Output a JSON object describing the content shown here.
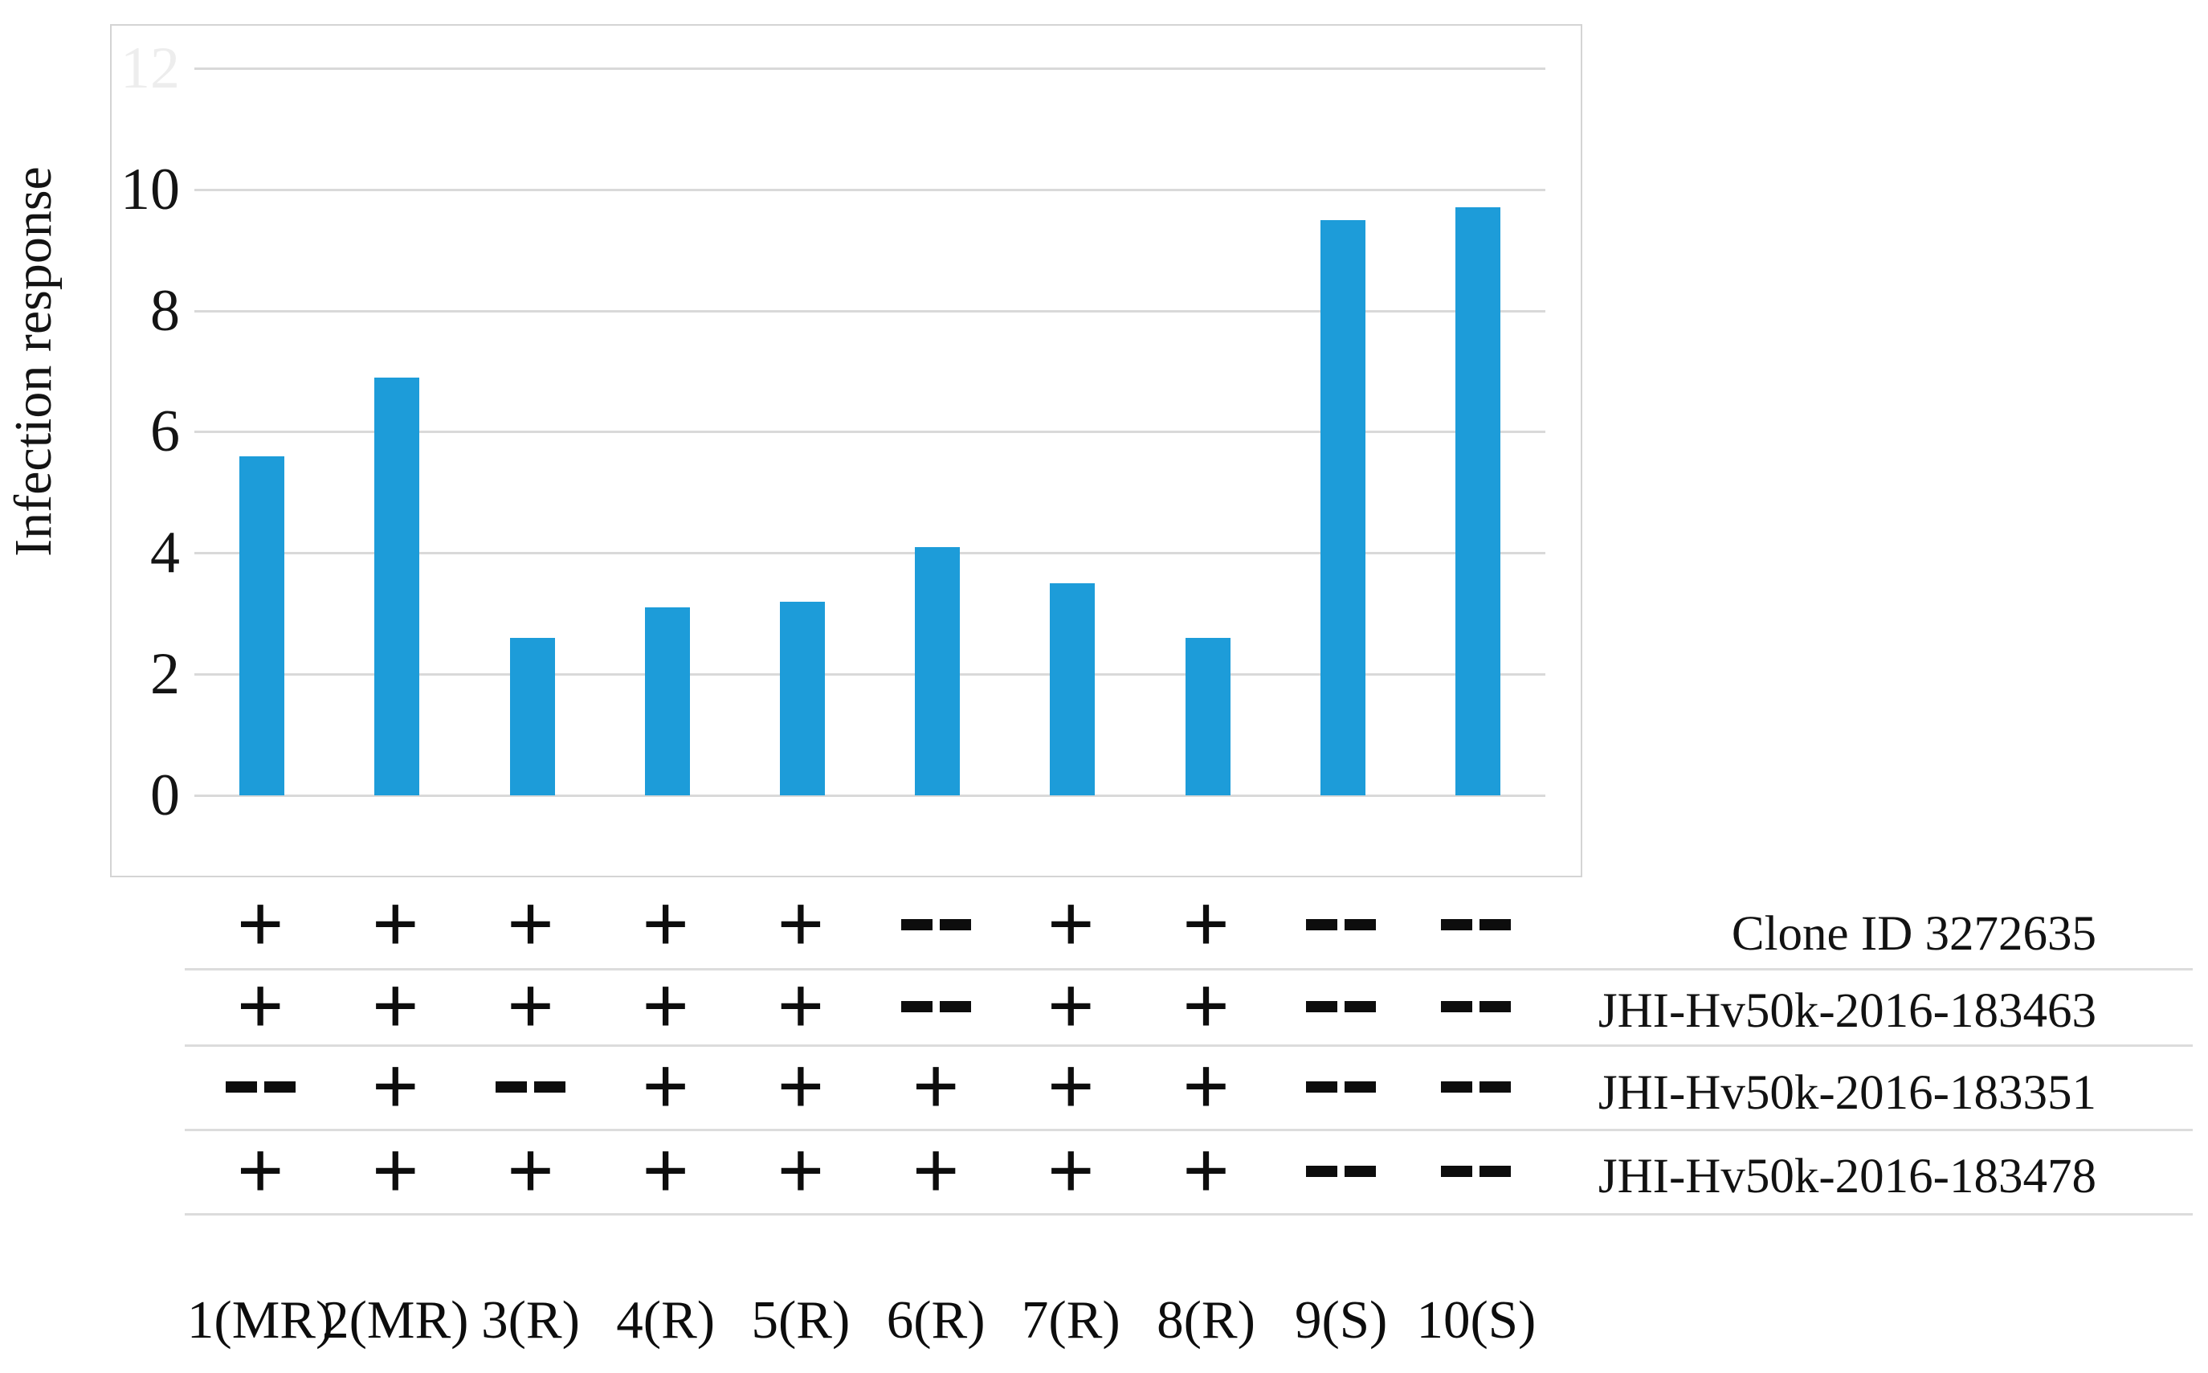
{
  "figure": {
    "faint_top_tick_label": "12"
  },
  "chart_data": {
    "type": "bar",
    "title": "",
    "xlabel": "",
    "ylabel": "Infection response",
    "categories": [
      "1(MR)",
      "2(MR)",
      "3(R)",
      "4(R)",
      "5(R)",
      "6(R)",
      "7(R)",
      "8(R)",
      "9(S)",
      "10(S)"
    ],
    "values": [
      5.6,
      6.9,
      2.6,
      3.1,
      3.2,
      4.1,
      3.5,
      2.6,
      9.5,
      9.7
    ],
    "ylim": [
      0,
      12
    ],
    "yticks": [
      0,
      2,
      4,
      6,
      8,
      10
    ],
    "grid": true,
    "legend": "none",
    "bar_color": "#1d9cd9"
  },
  "marker_table": {
    "rows": [
      {
        "label": "Clone ID 3272635",
        "marks": [
          "+",
          "+",
          "+",
          "+",
          "+",
          "--",
          "+",
          "+",
          "--",
          "--"
        ]
      },
      {
        "label": "JHI-Hv50k-2016-183463",
        "marks": [
          "+",
          "+",
          "+",
          "+",
          "+",
          "--",
          "+",
          "+",
          "--",
          "--"
        ]
      },
      {
        "label": "JHI-Hv50k-2016-183351",
        "marks": [
          "--",
          "+",
          "--",
          "+",
          "+",
          "+",
          "+",
          "+",
          "--",
          "--"
        ]
      },
      {
        "label": "JHI-Hv50k-2016-183478",
        "marks": [
          "+",
          "+",
          "+",
          "+",
          "+",
          "+",
          "+",
          "+",
          "--",
          "--"
        ]
      }
    ]
  },
  "colors": {
    "bar": "#1d9cd9",
    "grid": "#d9d9d9",
    "frame": "#d4d4d4",
    "text": "#111111"
  }
}
